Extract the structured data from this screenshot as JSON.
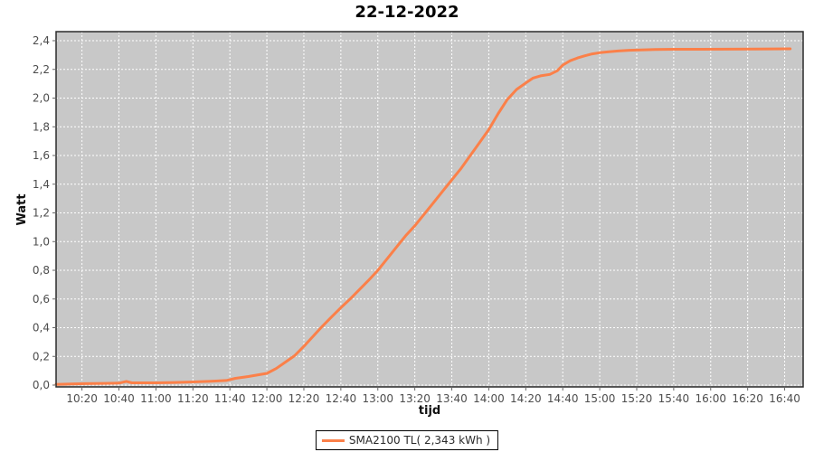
{
  "header": {
    "title": "22-12-2022"
  },
  "chart_data": {
    "type": "line",
    "title": "22-12-2022",
    "xlabel": "tijd",
    "ylabel": "Watt",
    "grid": true,
    "legend_position": "bottom-center",
    "x_domain": [
      "10:06",
      "16:50"
    ],
    "x_ticks": [
      "10:20",
      "10:40",
      "11:00",
      "11:20",
      "11:40",
      "12:00",
      "12:20",
      "12:40",
      "13:00",
      "13:20",
      "13:40",
      "14:00",
      "14:20",
      "14:40",
      "15:00",
      "15:20",
      "15:40",
      "16:00",
      "16:20",
      "16:40"
    ],
    "y_ticks": [
      0,
      0.2,
      0.4,
      0.6,
      0.8,
      1.0,
      1.2,
      1.4,
      1.6,
      1.8,
      2.0,
      2.2,
      2.4
    ],
    "y_tick_labels": [
      "0,0",
      "0,2",
      "0,4",
      "0,6",
      "0,8",
      "1,0",
      "1,2",
      "1,4",
      "1,6",
      "1,8",
      "2,0",
      "2,2",
      "2,4"
    ],
    "ylim": [
      0,
      2.46
    ],
    "colors": {
      "plot_bg": "#C8C8C8",
      "grid": "#FFFFFF",
      "plot_border": "#2b2b2b",
      "tick_mark": "#666666",
      "tick_text": "#4d4d4d",
      "series": "#FB8049"
    },
    "series": [
      {
        "name": "SMA2100 TL( 2,343 kWh )",
        "color": "#FB8049",
        "points": [
          [
            "10:06",
            0.005
          ],
          [
            "10:14",
            0.008
          ],
          [
            "10:22",
            0.01
          ],
          [
            "10:32",
            0.012
          ],
          [
            "10:40",
            0.014
          ],
          [
            "10:44",
            0.026
          ],
          [
            "10:47",
            0.016
          ],
          [
            "11:00",
            0.016
          ],
          [
            "11:10",
            0.018
          ],
          [
            "11:20",
            0.022
          ],
          [
            "11:30",
            0.027
          ],
          [
            "11:38",
            0.032
          ],
          [
            "11:43",
            0.047
          ],
          [
            "11:50",
            0.06
          ],
          [
            "12:00",
            0.082
          ],
          [
            "12:05",
            0.115
          ],
          [
            "12:10",
            0.16
          ],
          [
            "12:15",
            0.205
          ],
          [
            "12:20",
            0.27
          ],
          [
            "12:25",
            0.34
          ],
          [
            "12:30",
            0.41
          ],
          [
            "12:35",
            0.475
          ],
          [
            "12:40",
            0.54
          ],
          [
            "12:45",
            0.6
          ],
          [
            "12:50",
            0.665
          ],
          [
            "12:55",
            0.73
          ],
          [
            "13:00",
            0.8
          ],
          [
            "13:05",
            0.88
          ],
          [
            "13:10",
            0.96
          ],
          [
            "13:15",
            1.04
          ],
          [
            "13:20",
            1.11
          ],
          [
            "13:25",
            1.19
          ],
          [
            "13:30",
            1.27
          ],
          [
            "13:35",
            1.35
          ],
          [
            "13:40",
            1.43
          ],
          [
            "13:45",
            1.51
          ],
          [
            "13:50",
            1.6
          ],
          [
            "13:55",
            1.69
          ],
          [
            "14:00",
            1.78
          ],
          [
            "14:05",
            1.89
          ],
          [
            "14:10",
            1.99
          ],
          [
            "14:15",
            2.06
          ],
          [
            "14:20",
            2.105
          ],
          [
            "14:24",
            2.14
          ],
          [
            "14:28",
            2.155
          ],
          [
            "14:33",
            2.165
          ],
          [
            "14:37",
            2.19
          ],
          [
            "14:40",
            2.23
          ],
          [
            "14:44",
            2.26
          ],
          [
            "14:48",
            2.28
          ],
          [
            "14:52",
            2.295
          ],
          [
            "14:56",
            2.308
          ],
          [
            "15:00",
            2.316
          ],
          [
            "15:05",
            2.323
          ],
          [
            "15:10",
            2.328
          ],
          [
            "15:16",
            2.333
          ],
          [
            "15:22",
            2.336
          ],
          [
            "15:30",
            2.338
          ],
          [
            "15:40",
            2.34
          ],
          [
            "15:55",
            2.34
          ],
          [
            "16:10",
            2.341
          ],
          [
            "16:25",
            2.342
          ],
          [
            "16:43",
            2.343
          ]
        ]
      }
    ]
  }
}
